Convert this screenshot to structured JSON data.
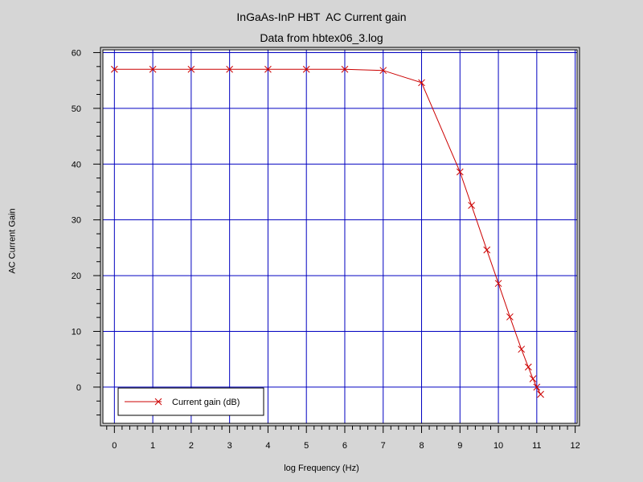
{
  "chart_data": {
    "type": "line",
    "title": "InGaAs-InP HBT  AC Current gain",
    "subtitle": "Data from hbtex06_3.log",
    "xlabel": "log Frequency (Hz)",
    "ylabel": "AC Current Gain",
    "xlim": [
      -0.3,
      12.05
    ],
    "ylim": [
      -6.5,
      60.5
    ],
    "x_ticks": [
      0,
      1,
      2,
      3,
      4,
      5,
      6,
      7,
      8,
      9,
      10,
      11,
      12
    ],
    "y_ticks": [
      0,
      10,
      20,
      30,
      40,
      50,
      60
    ],
    "x_minor_step": 0.2,
    "y_minor_step": 2.5,
    "grid": true,
    "grid_color": "#0000c0",
    "series": [
      {
        "name": "Current gain (dB)",
        "color": "#cc0000",
        "marker": "x",
        "x": [
          0,
          1,
          2,
          3,
          4,
          5,
          6,
          7,
          8,
          9,
          9.3,
          9.7,
          10,
          10.3,
          10.6,
          10.78,
          10.9,
          11.0,
          11.1
        ],
        "y": [
          57,
          57,
          57,
          57,
          57,
          57,
          57,
          56.8,
          54.6,
          38.6,
          32.6,
          24.6,
          18.6,
          12.6,
          6.8,
          3.6,
          1.5,
          0,
          -1.3
        ]
      }
    ],
    "legend_position": "bottom-left"
  }
}
